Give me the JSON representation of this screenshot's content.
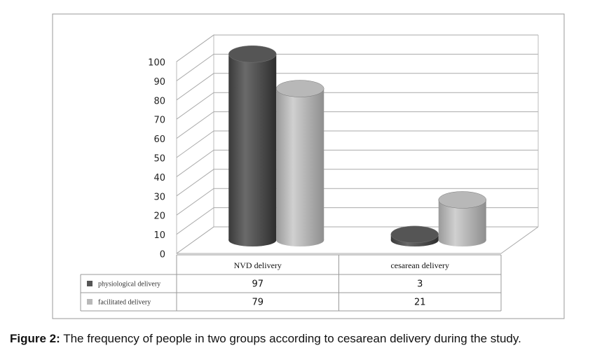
{
  "chart_data": {
    "type": "bar",
    "categories": [
      "NVD delivery",
      "cesarean delivery"
    ],
    "series": [
      {
        "name": "physiological delivery",
        "color": "#555555",
        "values": [
          97,
          3
        ]
      },
      {
        "name": "facilitated delivery",
        "color": "#b8b8b8",
        "values": [
          79,
          21
        ]
      }
    ],
    "ylim": [
      0,
      100
    ],
    "yticks": [
      0,
      10,
      20,
      30,
      40,
      50,
      60,
      70,
      80,
      90,
      100
    ],
    "grid": true
  },
  "caption": {
    "label": "Figure 2:",
    "text": "The frequency of people in two groups according to cesarean delivery during the study."
  }
}
